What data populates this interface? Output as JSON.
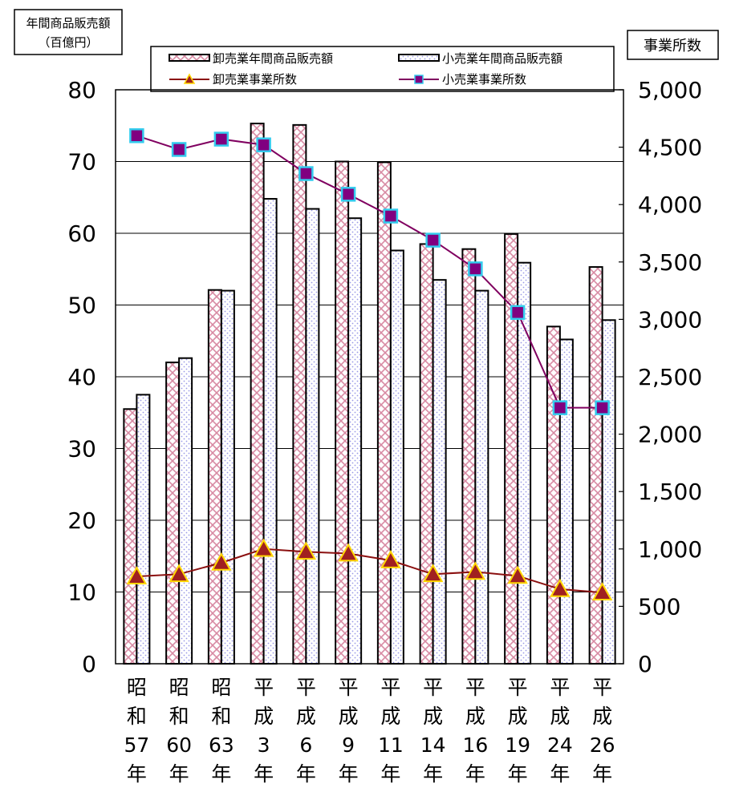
{
  "chart_data": {
    "type": "bar",
    "left_axis_title": [
      "年間商品販売額",
      "（百億円）"
    ],
    "right_axis_title": "事業所数",
    "categories": [
      [
        "昭",
        "和",
        "57",
        "年"
      ],
      [
        "昭",
        "和",
        "60",
        "年"
      ],
      [
        "昭",
        "和",
        "63",
        "年"
      ],
      [
        "平",
        "成",
        "3",
        "年"
      ],
      [
        "平",
        "成",
        "6",
        "年"
      ],
      [
        "平",
        "成",
        "9",
        "年"
      ],
      [
        "平",
        "成",
        "11",
        "年"
      ],
      [
        "平",
        "成",
        "14",
        "年"
      ],
      [
        "平",
        "成",
        "16",
        "年"
      ],
      [
        "平",
        "成",
        "19",
        "年"
      ],
      [
        "平",
        "成",
        "24",
        "年"
      ],
      [
        "平",
        "成",
        "26",
        "年"
      ]
    ],
    "bar_series": [
      {
        "name": "卸売業年間商品販売額",
        "axis": "left",
        "values": [
          35.5,
          42.0,
          52.1,
          75.3,
          75.1,
          70.0,
          69.9,
          58.5,
          57.8,
          59.9,
          47.0,
          55.3
        ]
      },
      {
        "name": "小売業年間商品販売額",
        "axis": "left",
        "values": [
          37.5,
          42.6,
          52.0,
          64.8,
          63.4,
          62.1,
          57.6,
          53.5,
          52.0,
          55.9,
          45.2,
          47.9
        ]
      }
    ],
    "line_series": [
      {
        "name": "卸売業事業所数",
        "axis": "right",
        "values": [
          760,
          780,
          880,
          1000,
          975,
          960,
          900,
          780,
          800,
          765,
          650,
          620
        ]
      },
      {
        "name": "小売業事業所数",
        "axis": "right",
        "values": [
          4600,
          4480,
          4570,
          4520,
          4270,
          4090,
          3900,
          3690,
          3440,
          3060,
          2230,
          2230
        ]
      }
    ],
    "left_axis": {
      "min": 0,
      "max": 80,
      "ticks": [
        "0",
        "10",
        "20",
        "30",
        "40",
        "50",
        "60",
        "70",
        "80"
      ]
    },
    "right_axis": {
      "min": 0,
      "max": 5000,
      "ticks": [
        "0",
        "500",
        "1,000",
        "1,500",
        "2,000",
        "2,500",
        "3,000",
        "3,500",
        "4,000",
        "4,500",
        "5,000"
      ]
    },
    "grid": true,
    "legend_position": "top",
    "colors": {
      "wholesale_bar": "#e8a6b8",
      "retail_bar": "#b7b7ef",
      "wholesale_line": "#8b1010",
      "wholesale_marker": "#a02020",
      "wholesale_marker_edge": "#ffd700",
      "retail_line": "#800060",
      "retail_marker": "#800080",
      "retail_marker_edge": "#33ccee"
    }
  }
}
